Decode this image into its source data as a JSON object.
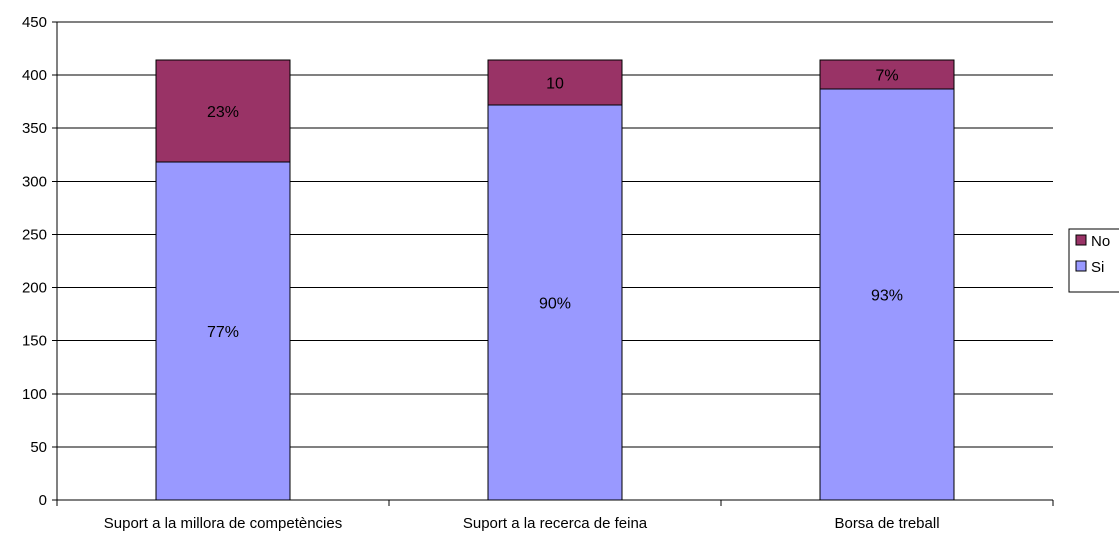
{
  "chart_data": {
    "type": "bar",
    "stacked": true,
    "categories": [
      "Suport  a la millora de competències",
      "Suport  a la recerca de feina",
      "Borsa de treball"
    ],
    "series": [
      {
        "name": "Si",
        "color": "#9999ff",
        "values": [
          318,
          372,
          387
        ],
        "labels": [
          "77%",
          "90%",
          "93%"
        ]
      },
      {
        "name": "No",
        "color": "#993366",
        "values": [
          96,
          42,
          27
        ],
        "labels": [
          "23%",
          "10",
          "7%"
        ]
      }
    ],
    "ylim": [
      0,
      450
    ],
    "yticks": [
      0,
      50,
      100,
      150,
      200,
      250,
      300,
      350,
      400,
      450
    ],
    "grid": true,
    "legend_position": "right",
    "legend_order": [
      "No",
      "Si"
    ]
  }
}
